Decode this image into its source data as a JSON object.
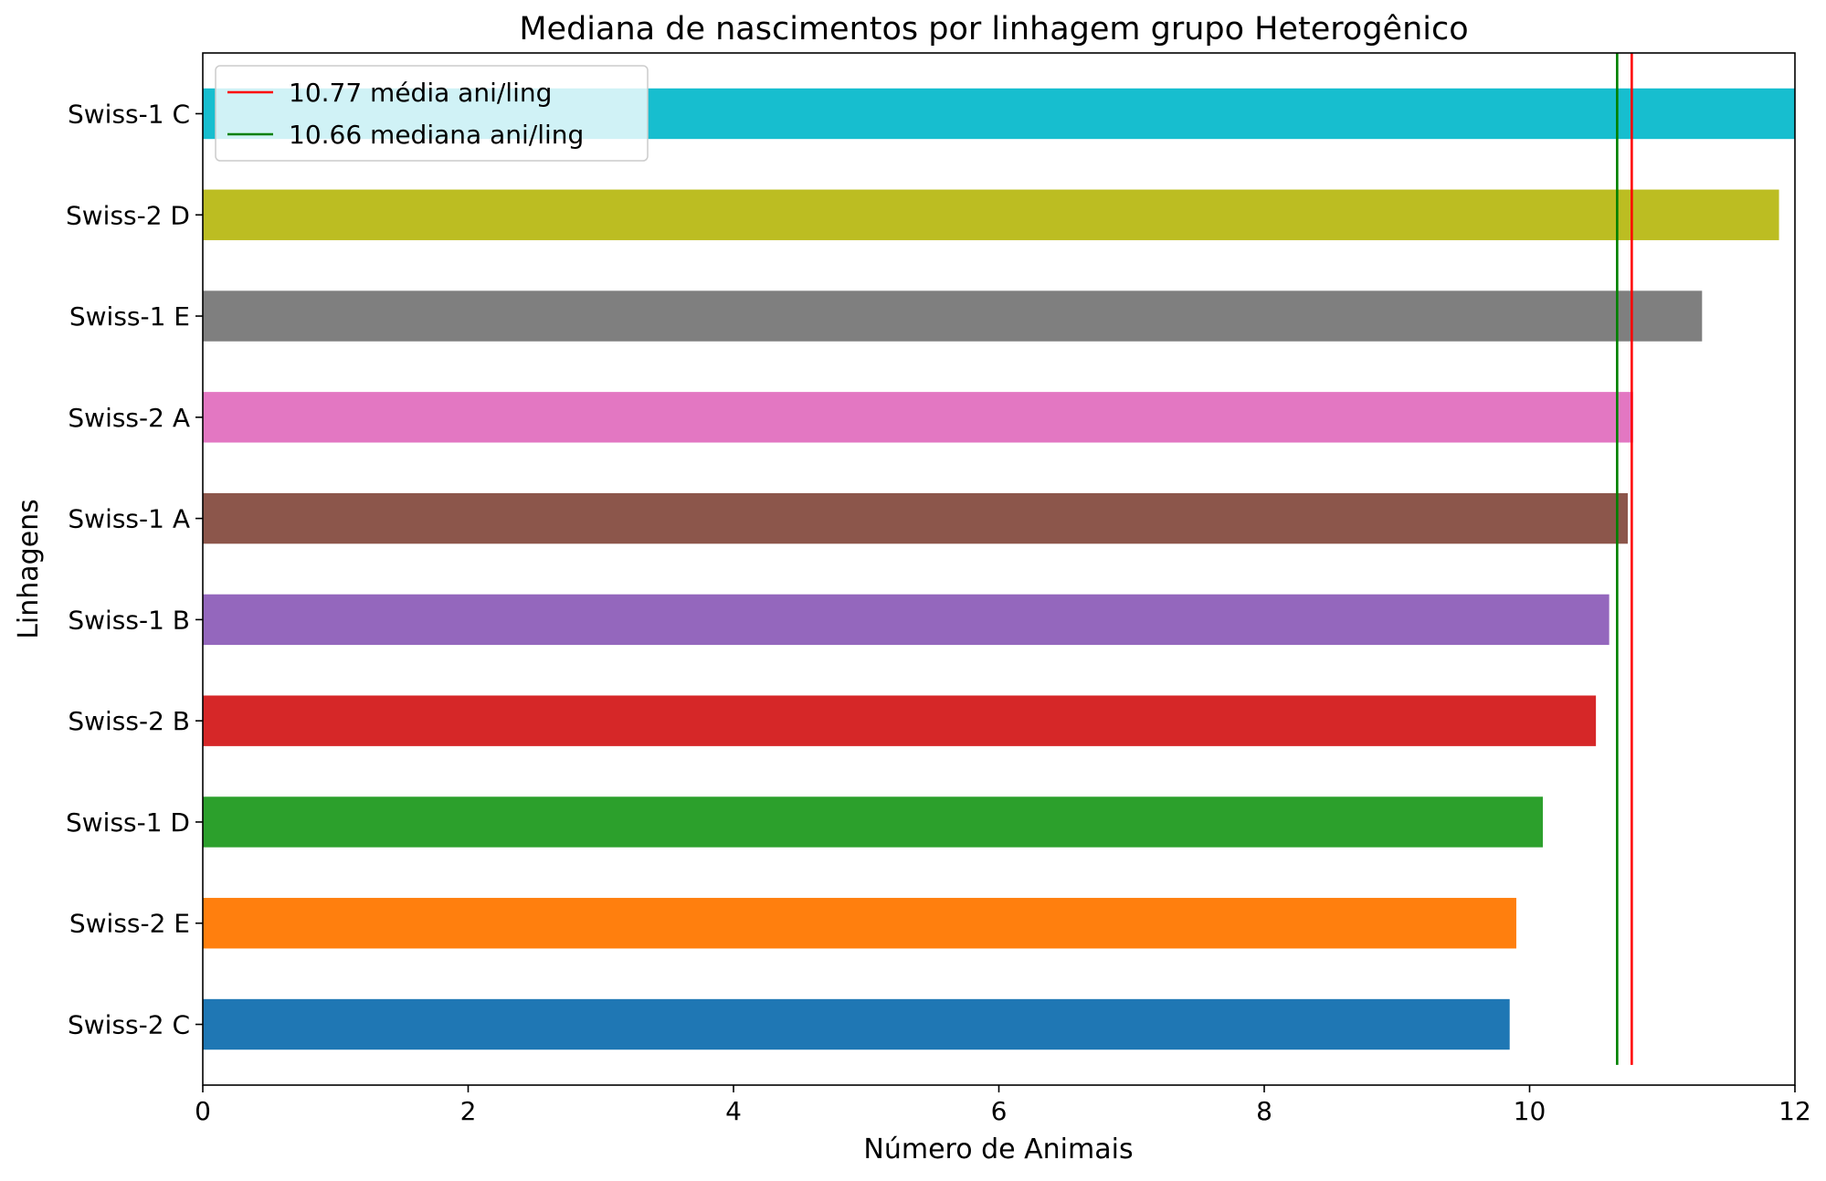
{
  "chart_data": {
    "type": "bar",
    "orientation": "horizontal",
    "title": "Mediana de nascimentos por linhagem grupo Heterogênico",
    "xlabel": "Número de Animais",
    "ylabel": "Linhagens",
    "xlim": [
      0,
      12
    ],
    "xticks": [
      0,
      2,
      4,
      6,
      8,
      10,
      12
    ],
    "grid": false,
    "legend_position": "upper-left",
    "categories": [
      "Swiss-2 C",
      "Swiss-2 E",
      "Swiss-1 D",
      "Swiss-2 B",
      "Swiss-1 B",
      "Swiss-1 A",
      "Swiss-2 A",
      "Swiss-1 E",
      "Swiss-2 D",
      "Swiss-1 C"
    ],
    "values": [
      9.85,
      9.9,
      10.1,
      10.5,
      10.6,
      10.74,
      10.78,
      11.3,
      11.88,
      12.0
    ],
    "colors": [
      "#1f77b4",
      "#ff7f0e",
      "#2ca02c",
      "#d62728",
      "#9467bd",
      "#8c564b",
      "#e377c2",
      "#7f7f7f",
      "#bcbd22",
      "#17becf"
    ],
    "reference_lines": [
      {
        "label": "10.77 média ani/ling",
        "value": 10.77,
        "color": "#ff0000"
      },
      {
        "label": "10.66 mediana ani/ling",
        "value": 10.66,
        "color": "#008000"
      }
    ]
  }
}
